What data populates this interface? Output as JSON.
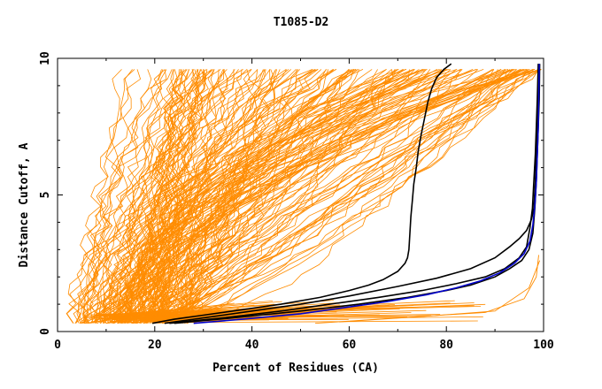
{
  "chart_data": {
    "type": "line",
    "title": "T1085-D2",
    "xlabel": "Percent of Residues (CA)",
    "ylabel": "Distance Cutoff, A",
    "xlim": [
      0,
      100
    ],
    "ylim": [
      0,
      10
    ],
    "x_ticks": [
      0,
      20,
      40,
      60,
      80,
      100
    ],
    "y_ticks": [
      0,
      5,
      10
    ],
    "x_tick_labels": [
      "0",
      "20",
      "40",
      "60",
      "80",
      "100"
    ],
    "y_tick_labels": [
      "0",
      "5",
      "10"
    ],
    "grid": false,
    "legend": "none",
    "colors": {
      "background_curves": "#ff8c00",
      "highlight_black": "#000000",
      "highlight_blue": "#0000cc"
    },
    "series": [
      {
        "values": [
          [
            19.5,
            0.3
          ],
          [
            24,
            0.45
          ],
          [
            30,
            0.6
          ],
          [
            38,
            0.8
          ],
          [
            46,
            1.0
          ],
          [
            54,
            1.25
          ],
          [
            60,
            1.5
          ],
          [
            64,
            1.7
          ],
          [
            67,
            1.9
          ],
          [
            70,
            2.2
          ],
          [
            71.5,
            2.5
          ],
          [
            72,
            2.7
          ],
          [
            72.3,
            3.0
          ],
          [
            72.5,
            3.6
          ],
          [
            72.7,
            4.2
          ],
          [
            73,
            4.8
          ],
          [
            73.3,
            5.4
          ],
          [
            73.8,
            6.0
          ],
          [
            74.2,
            6.6
          ],
          [
            74.8,
            7.2
          ],
          [
            75.5,
            7.8
          ],
          [
            76.2,
            8.4
          ],
          [
            77,
            8.9
          ],
          [
            78,
            9.3
          ],
          [
            79.5,
            9.6
          ],
          [
            81,
            9.8
          ]
        ]
      },
      {
        "values": [
          [
            22,
            0.3
          ],
          [
            30,
            0.5
          ],
          [
            40,
            0.75
          ],
          [
            50,
            1.0
          ],
          [
            60,
            1.3
          ],
          [
            70,
            1.65
          ],
          [
            78,
            1.95
          ],
          [
            85,
            2.3
          ],
          [
            90,
            2.7
          ],
          [
            93,
            3.1
          ],
          [
            95,
            3.4
          ],
          [
            96.5,
            3.7
          ],
          [
            97.5,
            4.1
          ],
          [
            98,
            4.5
          ],
          [
            98.3,
            5.5
          ],
          [
            98.5,
            6.5
          ],
          [
            98.7,
            7.5
          ],
          [
            98.9,
            8.5
          ],
          [
            99,
            9.8
          ]
        ]
      },
      {
        "values": [
          [
            23,
            0.3
          ],
          [
            34,
            0.5
          ],
          [
            46,
            0.75
          ],
          [
            56,
            1.0
          ],
          [
            66,
            1.25
          ],
          [
            75,
            1.5
          ],
          [
            82,
            1.75
          ],
          [
            88,
            2.0
          ],
          [
            92,
            2.3
          ],
          [
            95,
            2.7
          ],
          [
            96.5,
            3.1
          ],
          [
            97.2,
            3.8
          ],
          [
            97.7,
            4.5
          ],
          [
            98,
            5.5
          ],
          [
            98.3,
            6.5
          ],
          [
            98.5,
            7.5
          ],
          [
            98.7,
            8.5
          ],
          [
            98.9,
            9.8
          ]
        ]
      },
      {
        "values": [
          [
            24,
            0.3
          ],
          [
            36,
            0.5
          ],
          [
            50,
            0.75
          ],
          [
            62,
            1.0
          ],
          [
            72,
            1.25
          ],
          [
            80,
            1.5
          ],
          [
            85,
            1.7
          ],
          [
            90,
            2.0
          ],
          [
            93,
            2.3
          ],
          [
            95.5,
            2.6
          ],
          [
            97,
            3.0
          ],
          [
            97.8,
            3.6
          ],
          [
            98.2,
            4.5
          ],
          [
            98.5,
            5.5
          ],
          [
            98.7,
            6.5
          ],
          [
            98.9,
            7.5
          ],
          [
            99.1,
            8.5
          ],
          [
            99.2,
            9.8
          ]
        ]
      },
      {
        "values": [
          [
            28,
            0.3
          ],
          [
            38,
            0.45
          ],
          [
            50,
            0.65
          ],
          [
            60,
            0.9
          ],
          [
            68,
            1.1
          ],
          [
            76,
            1.35
          ],
          [
            82,
            1.6
          ],
          [
            87,
            1.85
          ],
          [
            91,
            2.15
          ],
          [
            94,
            2.5
          ],
          [
            96,
            2.85
          ],
          [
            97.2,
            3.3
          ],
          [
            97.8,
            3.9
          ],
          [
            98.2,
            4.6
          ],
          [
            98.5,
            5.5
          ],
          [
            98.7,
            6.5
          ],
          [
            98.9,
            7.5
          ],
          [
            99.0,
            8.5
          ],
          [
            99.1,
            9.8
          ]
        ]
      }
    ]
  }
}
